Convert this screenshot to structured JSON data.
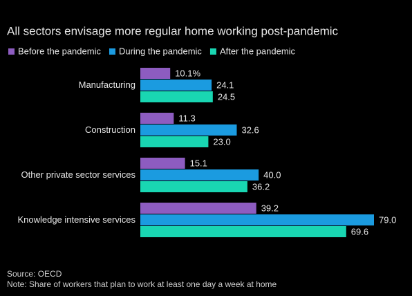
{
  "chart_data": {
    "type": "hbar",
    "title": "All sectors envisage more regular home working post-pandemic",
    "categories": [
      "Manufacturing",
      "Construction",
      "Other private sector services",
      "Knowledge intensive services"
    ],
    "series": [
      {
        "name": "Before the pandemic",
        "color": "#8d5cc0",
        "values": [
          10.1,
          11.3,
          15.1,
          39.2
        ],
        "value_labels": [
          "10.1%",
          "11.3",
          "15.1",
          "39.2"
        ]
      },
      {
        "name": "During the pandemic",
        "color": "#1b9be0",
        "values": [
          24.1,
          32.6,
          40.0,
          79.0
        ],
        "value_labels": [
          "24.1",
          "32.6",
          "40.0",
          "79.0"
        ]
      },
      {
        "name": "After the pandemic",
        "color": "#19d6b2",
        "values": [
          24.5,
          23.0,
          36.2,
          69.6
        ],
        "value_labels": [
          "24.5",
          "23.0",
          "36.2",
          "69.6"
        ]
      }
    ],
    "source": "Source: OECD",
    "note": "Note: Share of workers that plan to work at least one day a week at home"
  }
}
